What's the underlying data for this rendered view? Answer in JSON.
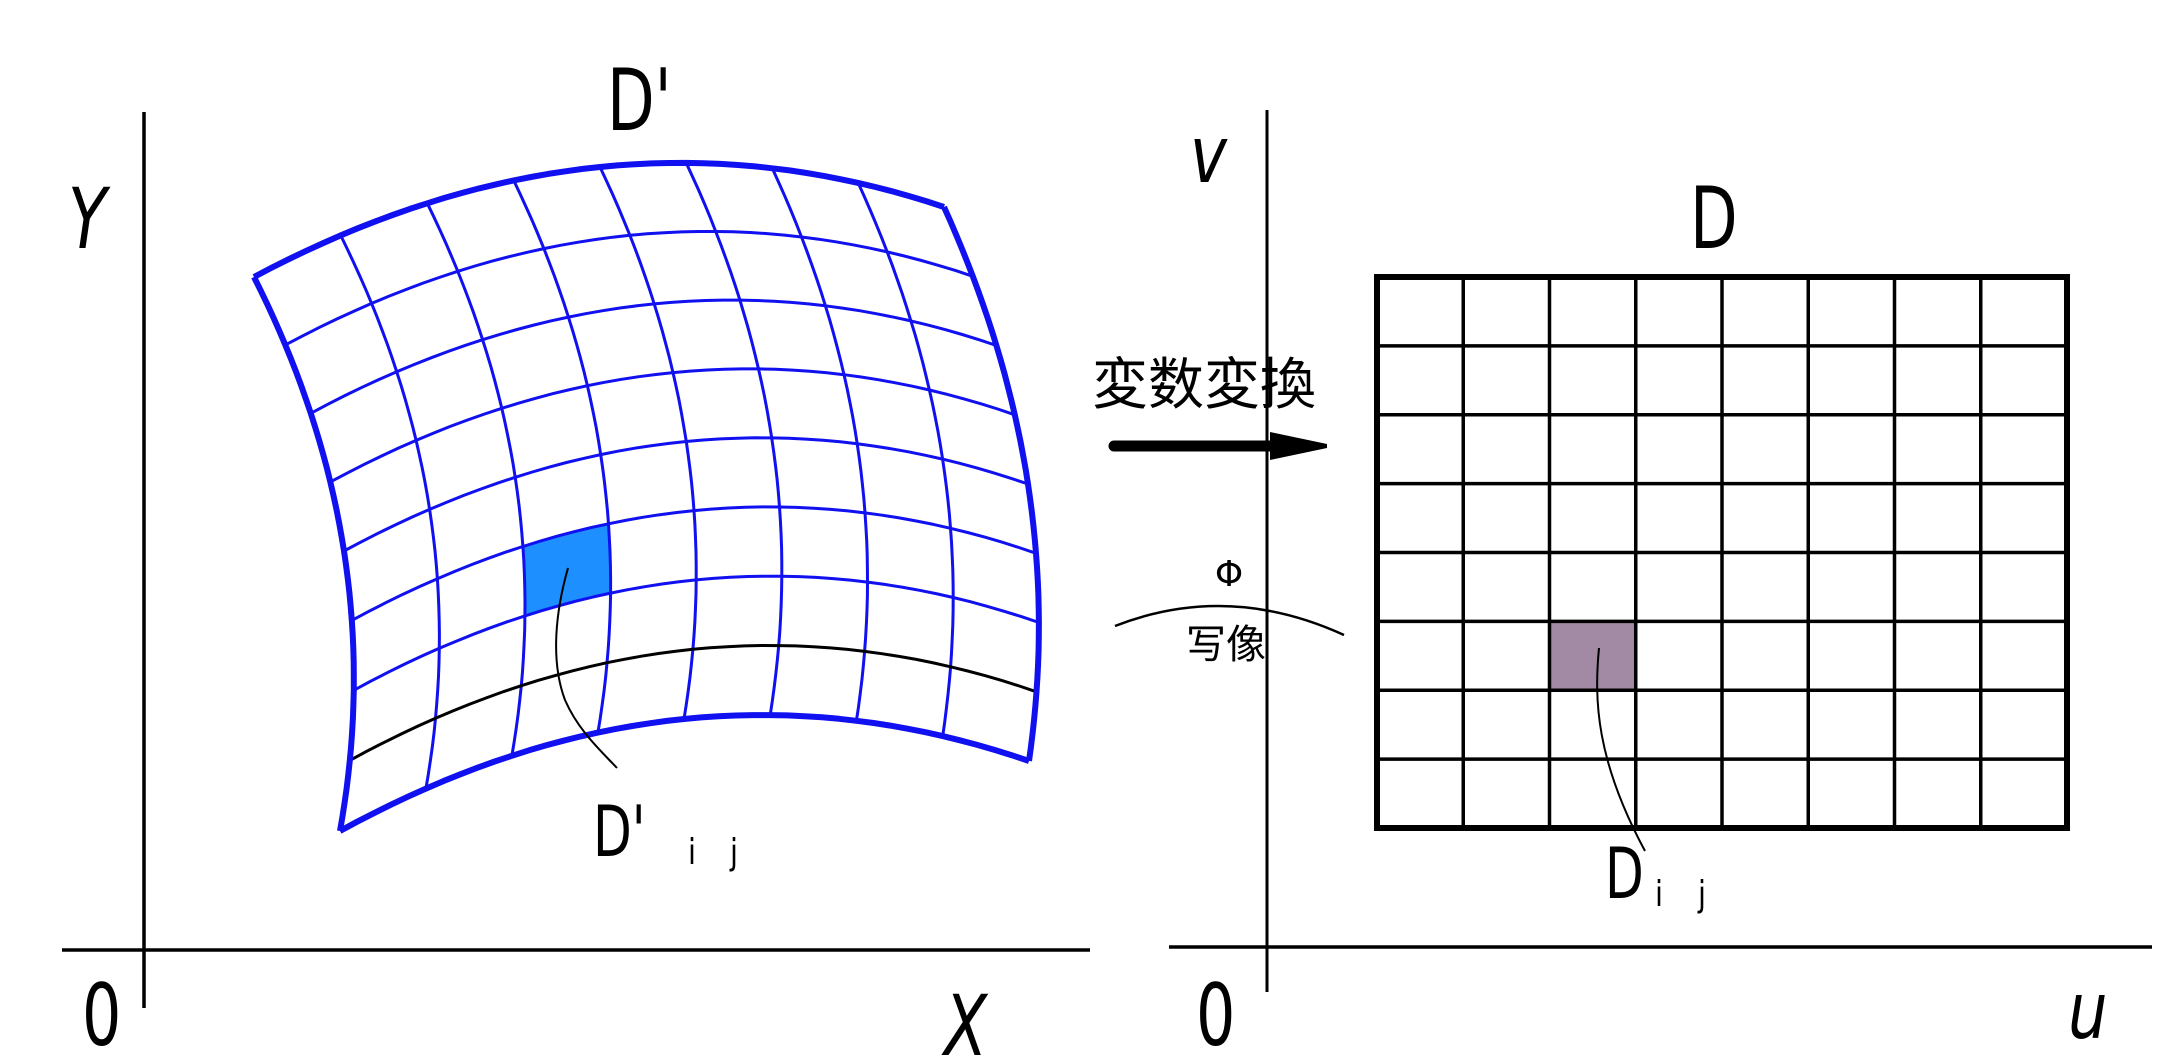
{
  "left_panel": {
    "title": "D'",
    "y_axis_label": "Y",
    "x_axis_label": "X",
    "origin_label": "0",
    "cell_label": "D'",
    "cell_sub_i": "i",
    "cell_sub_j": "j",
    "grid": {
      "columns": 8,
      "rows": 8,
      "highlight_column": 2,
      "highlight_row": 5,
      "black_row_line": 7
    },
    "colors": {
      "grid": "#1010f0",
      "highlight": "#1e8fff",
      "black_line": "#000000"
    }
  },
  "right_panel": {
    "title": "D",
    "y_axis_label": "v",
    "x_axis_label": "u",
    "origin_label": "0",
    "cell_label": "D",
    "cell_sub_i": "i",
    "cell_sub_j": "j",
    "grid": {
      "columns": 8,
      "rows": 8,
      "highlight_column": 2,
      "highlight_row": 5
    },
    "colors": {
      "grid": "#000000",
      "highlight": "#a28aa4"
    }
  },
  "transform": {
    "label": "変数変換",
    "map_symbol": "Φ",
    "map_label": "写像"
  }
}
